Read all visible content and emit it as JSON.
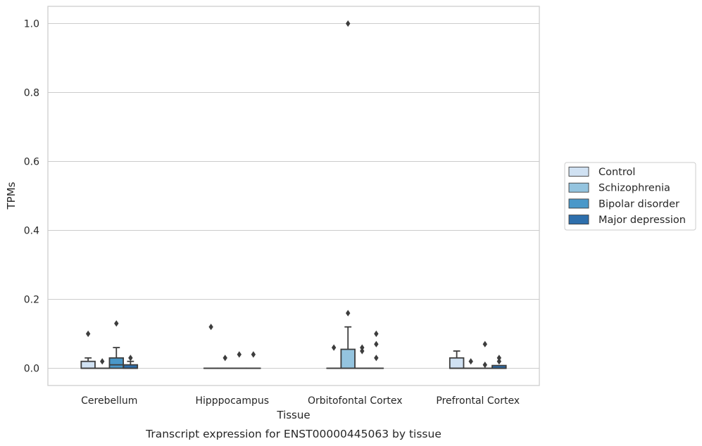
{
  "chart_data": {
    "type": "box",
    "xlabel": "Tissue",
    "ylabel": "TPMs",
    "caption": "Transcript expression for ENST00000445063 by tissue",
    "ylim": [
      -0.05,
      1.05
    ],
    "yticks": [
      0.0,
      0.2,
      0.4,
      0.6,
      0.8,
      1.0
    ],
    "ytick_labels": [
      "0.0",
      "0.2",
      "0.4",
      "0.6",
      "0.8",
      "1.0"
    ],
    "grid": true,
    "legend_position": "right",
    "categories": [
      "Cerebellum",
      "Hipppocampus",
      "Orbitofontal Cortex",
      "Prefrontal Cortex"
    ],
    "series": [
      {
        "name": "Control",
        "color": "#d0e1f2",
        "boxes": [
          {
            "q1": 0.0,
            "median": 0.0,
            "q3": 0.02,
            "whisker_low": 0.0,
            "whisker_high": 0.03,
            "outliers": [
              0.1
            ]
          },
          {
            "q1": 0.0,
            "median": 0.0,
            "q3": 0.0,
            "whisker_low": 0.0,
            "whisker_high": 0.0,
            "outliers": [
              0.12
            ]
          },
          {
            "q1": 0.0,
            "median": 0.0,
            "q3": 0.0,
            "whisker_low": 0.0,
            "whisker_high": 0.0,
            "outliers": [
              0.06
            ]
          },
          {
            "q1": 0.0,
            "median": 0.0,
            "q3": 0.03,
            "whisker_low": 0.0,
            "whisker_high": 0.05,
            "outliers": []
          }
        ]
      },
      {
        "name": "Schizophrenia",
        "color": "#94c4df",
        "boxes": [
          {
            "q1": 0.0,
            "median": 0.0,
            "q3": 0.0,
            "whisker_low": 0.0,
            "whisker_high": 0.0,
            "outliers": [
              0.02
            ]
          },
          {
            "q1": 0.0,
            "median": 0.0,
            "q3": 0.0,
            "whisker_low": 0.0,
            "whisker_high": 0.0,
            "outliers": [
              0.03
            ]
          },
          {
            "q1": 0.0,
            "median": 0.0,
            "q3": 0.055,
            "whisker_low": 0.0,
            "whisker_high": 0.12,
            "outliers": [
              0.16,
              1.0
            ]
          },
          {
            "q1": 0.0,
            "median": 0.0,
            "q3": 0.0,
            "whisker_low": 0.0,
            "whisker_high": 0.0,
            "outliers": [
              0.02
            ]
          }
        ]
      },
      {
        "name": "Bipolar disorder",
        "color": "#4a98c9",
        "boxes": [
          {
            "q1": 0.0,
            "median": 0.01,
            "q3": 0.03,
            "whisker_low": 0.0,
            "whisker_high": 0.06,
            "outliers": [
              0.13
            ]
          },
          {
            "q1": 0.0,
            "median": 0.0,
            "q3": 0.0,
            "whisker_low": 0.0,
            "whisker_high": 0.0,
            "outliers": [
              0.04
            ]
          },
          {
            "q1": 0.0,
            "median": 0.0,
            "q3": 0.0,
            "whisker_low": 0.0,
            "whisker_high": 0.0,
            "outliers": [
              0.05,
              0.06
            ]
          },
          {
            "q1": 0.0,
            "median": 0.0,
            "q3": 0.0,
            "whisker_low": 0.0,
            "whisker_high": 0.0,
            "outliers": [
              0.01,
              0.07
            ]
          }
        ]
      },
      {
        "name": "Major depression",
        "color": "#2e6fac",
        "boxes": [
          {
            "q1": 0.0,
            "median": 0.0,
            "q3": 0.01,
            "whisker_low": 0.0,
            "whisker_high": 0.02,
            "outliers": [
              0.03
            ]
          },
          {
            "q1": 0.0,
            "median": 0.0,
            "q3": 0.0,
            "whisker_low": 0.0,
            "whisker_high": 0.0,
            "outliers": [
              0.04
            ]
          },
          {
            "q1": 0.0,
            "median": 0.0,
            "q3": 0.0,
            "whisker_low": 0.0,
            "whisker_high": 0.0,
            "outliers": [
              0.03,
              0.07,
              0.1
            ]
          },
          {
            "q1": 0.0,
            "median": 0.0,
            "q3": 0.008,
            "whisker_low": 0.0,
            "whisker_high": 0.008,
            "outliers": [
              0.02,
              0.03
            ]
          }
        ]
      }
    ]
  }
}
